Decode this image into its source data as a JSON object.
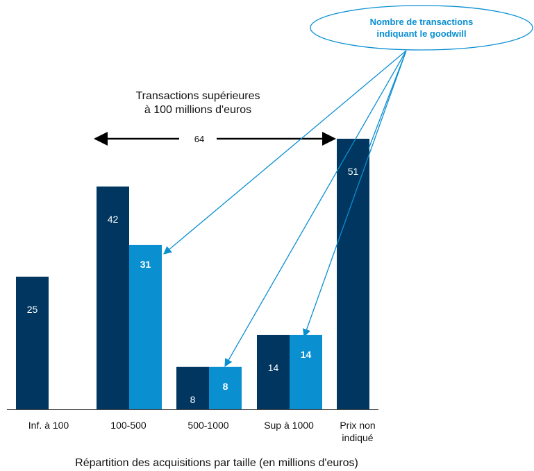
{
  "colors": {
    "total": "#003660",
    "goodwill": "#0a8fd1",
    "axis": "#444444",
    "text": "#111111",
    "arrow": "#0a8fd1"
  },
  "chart_data": {
    "type": "bar",
    "categories": [
      "Inf. à 100",
      "100-500",
      "500-1000",
      "Sup à 1000",
      "Prix non\nindiqué"
    ],
    "series": [
      {
        "values": [
          25,
          42,
          8,
          14,
          51
        ]
      },
      {
        "values": [
          null,
          31,
          8,
          14,
          null
        ]
      }
    ],
    "xlabel": "Répartition des acquisitions par taille (en millions d'euros)",
    "ylim": [
      0,
      51
    ],
    "grid": false,
    "annotations": {
      "bracket_title": "Transactions supérieures\nà 100 millions d'euros",
      "bracket_value": "64",
      "callout": "Nombre de transactions\nindiquant le goodwill"
    }
  }
}
